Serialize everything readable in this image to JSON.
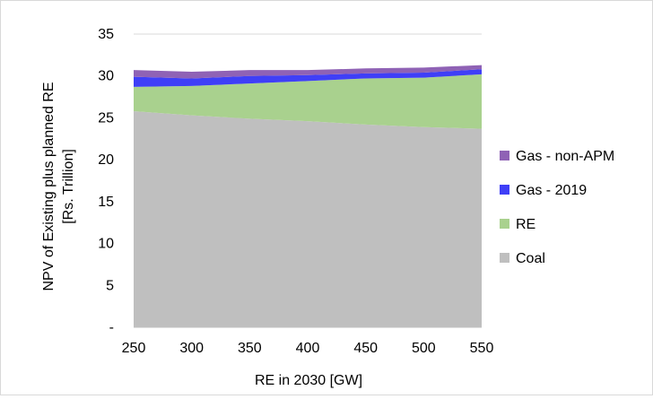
{
  "chart_data": {
    "type": "area",
    "stacked": true,
    "title": "",
    "xlabel": "RE in 2030 [GW]",
    "ylabel_lines": [
      "NPV of Existing plus planned RE",
      "[Rs. Trillion]"
    ],
    "x": [
      250,
      300,
      350,
      400,
      450,
      500,
      550
    ],
    "x_tick_labels": [
      "250",
      "300",
      "350",
      "400",
      "450",
      "500",
      "550"
    ],
    "ylim": [
      0,
      35
    ],
    "y_ticks": [
      0,
      5,
      10,
      15,
      20,
      25,
      30,
      35
    ],
    "y_tick_labels": [
      "-",
      "5",
      "10",
      "15",
      "20",
      "25",
      "30",
      "35"
    ],
    "grid": "horizontal",
    "legend_position": "right",
    "series": [
      {
        "name": "Coal",
        "color": "#bfbfbf",
        "values": [
          25.8,
          25.3,
          24.9,
          24.6,
          24.2,
          23.9,
          23.7
        ]
      },
      {
        "name": "RE",
        "color": "#a9d18e",
        "values": [
          2.9,
          3.5,
          4.2,
          4.8,
          5.5,
          5.9,
          6.5
        ]
      },
      {
        "name": "Gas - 2019",
        "color": "#3f3ff7",
        "values": [
          1.2,
          0.9,
          0.9,
          0.7,
          0.6,
          0.6,
          0.6
        ]
      },
      {
        "name": "Gas - non-APM",
        "color": "#8f62b5",
        "values": [
          0.8,
          0.8,
          0.7,
          0.6,
          0.6,
          0.6,
          0.5
        ]
      }
    ],
    "legend_order": [
      "Gas - non-APM",
      "Gas - 2019",
      "RE",
      "Coal"
    ]
  }
}
